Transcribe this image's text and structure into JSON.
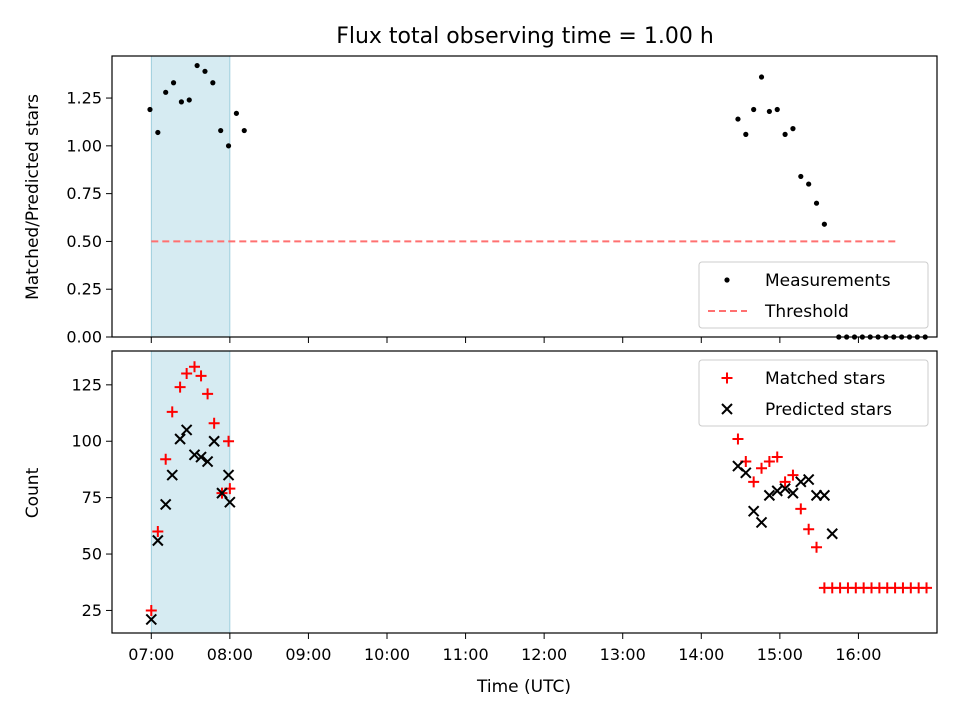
{
  "chart_data": [
    {
      "type": "scatter",
      "title": "Flux total observing time = 1.00 h",
      "xlabel": "",
      "ylabel": "Matched/Predicted stars",
      "xlim": [
        "06:30",
        "17:00"
      ],
      "ylim": [
        0.0,
        1.47
      ],
      "yticks": [
        "0.00",
        "0.25",
        "0.50",
        "0.75",
        "1.00",
        "1.25"
      ],
      "shaded_interval": [
        "07:00",
        "08:00"
      ],
      "legend": {
        "position": "lower-right",
        "entries": [
          "Measurements",
          "Threshold"
        ]
      },
      "series": [
        {
          "name": "Measurements",
          "marker": "dot",
          "color": "#000000",
          "points": [
            [
              "06:59",
              1.19
            ],
            [
              "07:05",
              1.07
            ],
            [
              "07:11",
              1.28
            ],
            [
              "07:17",
              1.33
            ],
            [
              "07:23",
              1.23
            ],
            [
              "07:29",
              1.24
            ],
            [
              "07:35",
              1.42
            ],
            [
              "07:41",
              1.39
            ],
            [
              "07:47",
              1.33
            ],
            [
              "07:53",
              1.08
            ],
            [
              "07:59",
              1.0
            ],
            [
              "08:05",
              1.17
            ],
            [
              "08:11",
              1.08
            ],
            [
              "14:28",
              1.14
            ],
            [
              "14:34",
              1.06
            ],
            [
              "14:40",
              1.19
            ],
            [
              "14:46",
              1.36
            ],
            [
              "14:52",
              1.18
            ],
            [
              "14:58",
              1.19
            ],
            [
              "15:04",
              1.06
            ],
            [
              "15:10",
              1.09
            ],
            [
              "15:16",
              0.84
            ],
            [
              "15:22",
              0.8
            ],
            [
              "15:28",
              0.7
            ],
            [
              "15:34",
              0.59
            ],
            [
              "15:45",
              0.0
            ],
            [
              "15:51",
              0.0
            ],
            [
              "15:57",
              0.0
            ],
            [
              "16:03",
              0.0
            ],
            [
              "16:09",
              0.0
            ],
            [
              "16:15",
              0.0
            ],
            [
              "16:21",
              0.0
            ],
            [
              "16:27",
              0.0
            ],
            [
              "16:33",
              0.0
            ],
            [
              "16:39",
              0.0
            ],
            [
              "16:45",
              0.0
            ],
            [
              "16:51",
              0.0
            ]
          ]
        },
        {
          "name": "Threshold",
          "line": "dashed",
          "color": "#ff7070",
          "points": [
            [
              "07:00",
              0.5
            ],
            [
              "16:30",
              0.5
            ]
          ]
        }
      ]
    },
    {
      "type": "scatter",
      "title": "",
      "xlabel": "Time (UTC)",
      "ylabel": "Count",
      "xlim": [
        "06:30",
        "17:00"
      ],
      "ylim": [
        15,
        140
      ],
      "yticks": [
        "25",
        "50",
        "75",
        "100",
        "125"
      ],
      "xticks": [
        "07:00",
        "08:00",
        "09:00",
        "10:00",
        "11:00",
        "12:00",
        "13:00",
        "14:00",
        "15:00",
        "16:00"
      ],
      "shaded_interval": [
        "07:00",
        "08:00"
      ],
      "legend": {
        "position": "top-right",
        "entries": [
          "Matched stars",
          "Predicted stars"
        ]
      },
      "series": [
        {
          "name": "Matched stars",
          "marker": "plus",
          "color": "#ff0000",
          "points": [
            [
              "07:00",
              25
            ],
            [
              "07:05",
              60
            ],
            [
              "07:11",
              92
            ],
            [
              "07:16",
              113
            ],
            [
              "07:22",
              124
            ],
            [
              "07:27",
              130
            ],
            [
              "07:33",
              133
            ],
            [
              "07:38",
              129
            ],
            [
              "07:43",
              121
            ],
            [
              "07:48",
              108
            ],
            [
              "07:54",
              77
            ],
            [
              "07:59",
              100
            ],
            [
              "08:00",
              79
            ],
            [
              "14:28",
              101
            ],
            [
              "14:34",
              91
            ],
            [
              "14:40",
              82
            ],
            [
              "14:46",
              88
            ],
            [
              "14:52",
              91
            ],
            [
              "14:58",
              93
            ],
            [
              "15:04",
              82
            ],
            [
              "15:10",
              85
            ],
            [
              "15:16",
              70
            ],
            [
              "15:22",
              61
            ],
            [
              "15:28",
              53
            ],
            [
              "15:34",
              35
            ],
            [
              "15:40",
              35
            ],
            [
              "15:46",
              35
            ],
            [
              "15:52",
              35
            ],
            [
              "15:58",
              35
            ],
            [
              "16:04",
              35
            ],
            [
              "16:10",
              35
            ],
            [
              "16:16",
              35
            ],
            [
              "16:22",
              35
            ],
            [
              "16:28",
              35
            ],
            [
              "16:34",
              35
            ],
            [
              "16:40",
              35
            ],
            [
              "16:46",
              35
            ],
            [
              "16:52",
              35
            ]
          ]
        },
        {
          "name": "Predicted stars",
          "marker": "x",
          "color": "#000000",
          "points": [
            [
              "07:00",
              21
            ],
            [
              "07:05",
              56
            ],
            [
              "07:11",
              72
            ],
            [
              "07:16",
              85
            ],
            [
              "07:22",
              101
            ],
            [
              "07:27",
              105
            ],
            [
              "07:33",
              94
            ],
            [
              "07:38",
              93
            ],
            [
              "07:43",
              91
            ],
            [
              "07:48",
              100
            ],
            [
              "07:54",
              77
            ],
            [
              "07:59",
              85
            ],
            [
              "08:00",
              73
            ],
            [
              "14:28",
              89
            ],
            [
              "14:34",
              86
            ],
            [
              "14:40",
              69
            ],
            [
              "14:46",
              64
            ],
            [
              "14:52",
              76
            ],
            [
              "14:58",
              78
            ],
            [
              "15:04",
              79
            ],
            [
              "15:10",
              77
            ],
            [
              "15:16",
              82
            ],
            [
              "15:22",
              83
            ],
            [
              "15:28",
              76
            ],
            [
              "15:34",
              76
            ],
            [
              "15:40",
              59
            ]
          ]
        }
      ]
    }
  ]
}
